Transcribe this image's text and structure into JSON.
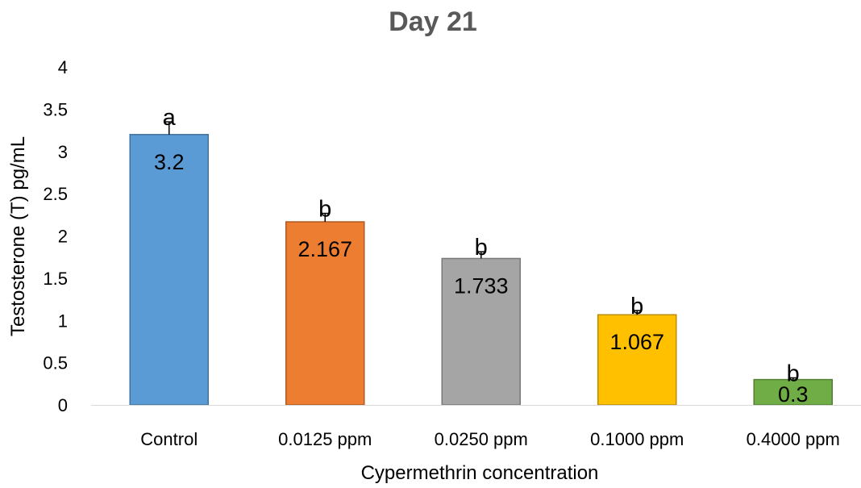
{
  "chart_data": {
    "type": "bar",
    "title": "Day 21",
    "xlabel": "Cypermethrin concentration",
    "ylabel": "Testosterone (T) pg/mL",
    "ylim": [
      0,
      4
    ],
    "yticks": [
      "0",
      "0.5",
      "1",
      "1.5",
      "2",
      "2.5",
      "3",
      "3.5",
      "4"
    ],
    "categories": [
      "Control",
      "0.0125 ppm",
      "0.0250 ppm",
      "0.1000 ppm",
      "0.4000 ppm"
    ],
    "values": [
      3.2,
      2.167,
      1.733,
      1.067,
      0.3
    ],
    "value_labels": [
      "3.2",
      "2.167",
      "1.733",
      "1.067",
      "0.3"
    ],
    "error": [
      0.15,
      0.1,
      0.08,
      0.05,
      0.02
    ],
    "significance_letters": [
      "a",
      "b",
      "b",
      "b",
      "b"
    ],
    "colors": [
      "#5b9bd5",
      "#ed7d31",
      "#a5a5a5",
      "#ffc000",
      "#70ad47"
    ],
    "border_colors": [
      "#41719c",
      "#ae5a21",
      "#787878",
      "#bc8c00",
      "#507e32"
    ],
    "grid": false,
    "legend": "none"
  }
}
